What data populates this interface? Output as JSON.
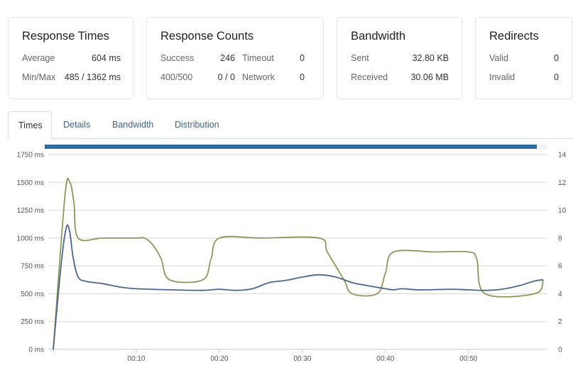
{
  "cards": {
    "response_times": {
      "title": "Response Times",
      "average_label": "Average",
      "average_value": "604 ms",
      "minmax_label": "Min/Max",
      "minmax_value": "485 / 1362 ms"
    },
    "response_counts": {
      "title": "Response Counts",
      "success_label": "Success",
      "success_value": "246",
      "timeout_label": "Timeout",
      "timeout_value": "0",
      "errors_label": "400/500",
      "errors_value": "0 / 0",
      "network_label": "Network",
      "network_value": "0"
    },
    "bandwidth": {
      "title": "Bandwidth",
      "sent_label": "Sent",
      "sent_value": "32.80 KB",
      "received_label": "Received",
      "received_value": "30.06 MB"
    },
    "redirects": {
      "title": "Redirects",
      "valid_label": "Valid",
      "valid_value": "0",
      "invalid_label": "Invalid",
      "invalid_value": "0"
    }
  },
  "tabs": [
    {
      "label": "Times",
      "active": true
    },
    {
      "label": "Details",
      "active": false
    },
    {
      "label": "Bandwidth",
      "active": false
    },
    {
      "label": "Distribution",
      "active": false
    }
  ],
  "progress": 0.98,
  "chart_data": {
    "type": "line",
    "xlabel": "",
    "ylabel": "",
    "x_ticks": [
      "00:10",
      "00:20",
      "00:30",
      "00:40",
      "00:50"
    ],
    "x_tick_values": [
      10,
      20,
      30,
      40,
      50
    ],
    "xlim": [
      0,
      59
    ],
    "y_left_ticks": [
      "0 ms",
      "250 ms",
      "500 ms",
      "750 ms",
      "1000 ms",
      "1250 ms",
      "1500 ms",
      "1750 ms"
    ],
    "y_left_tick_values": [
      0,
      250,
      500,
      750,
      1000,
      1250,
      1500,
      1750
    ],
    "ylim_left": [
      0,
      1750
    ],
    "y_right_ticks": [
      "0",
      "2",
      "4",
      "6",
      "8",
      "10",
      "12",
      "14"
    ],
    "y_right_tick_values": [
      0,
      2,
      4,
      6,
      8,
      10,
      12,
      14
    ],
    "ylim_right": [
      0,
      14
    ],
    "grid": true,
    "series": [
      {
        "color": "#8a9a5b",
        "axis": "right",
        "points": [
          [
            0,
            0
          ],
          [
            1.4,
            11
          ],
          [
            2,
            12
          ],
          [
            2.5,
            10.5
          ],
          [
            3,
            8
          ],
          [
            6,
            8
          ],
          [
            10,
            8
          ],
          [
            11,
            8
          ],
          [
            12,
            7.5
          ],
          [
            13,
            6.5
          ],
          [
            14,
            5
          ],
          [
            18,
            5
          ],
          [
            19,
            6.5
          ],
          [
            20,
            8
          ],
          [
            25,
            8
          ],
          [
            32,
            8
          ],
          [
            33,
            7
          ],
          [
            35,
            5
          ],
          [
            36,
            4
          ],
          [
            39,
            4
          ],
          [
            40,
            5.5
          ],
          [
            41,
            7
          ],
          [
            46,
            7
          ],
          [
            50,
            7
          ],
          [
            51,
            6.5
          ],
          [
            52,
            4
          ],
          [
            58,
            4
          ],
          [
            59,
            5
          ]
        ]
      },
      {
        "color": "#4d6690",
        "axis": "left",
        "points": [
          [
            0,
            0
          ],
          [
            1,
            800
          ],
          [
            1.6,
            1100
          ],
          [
            2,
            1050
          ],
          [
            2.4,
            820
          ],
          [
            3,
            650
          ],
          [
            4,
            610
          ],
          [
            6,
            590
          ],
          [
            8,
            560
          ],
          [
            10,
            545
          ],
          [
            14,
            535
          ],
          [
            18,
            530
          ],
          [
            20,
            540
          ],
          [
            22,
            530
          ],
          [
            24,
            545
          ],
          [
            26,
            600
          ],
          [
            28,
            620
          ],
          [
            30,
            650
          ],
          [
            32,
            670
          ],
          [
            34,
            650
          ],
          [
            36,
            600
          ],
          [
            38,
            570
          ],
          [
            40,
            545
          ],
          [
            41,
            535
          ],
          [
            42,
            545
          ],
          [
            44,
            535
          ],
          [
            48,
            540
          ],
          [
            50,
            535
          ],
          [
            52,
            530
          ],
          [
            54,
            540
          ],
          [
            56,
            570
          ],
          [
            58,
            615
          ],
          [
            59,
            625
          ]
        ]
      }
    ]
  }
}
